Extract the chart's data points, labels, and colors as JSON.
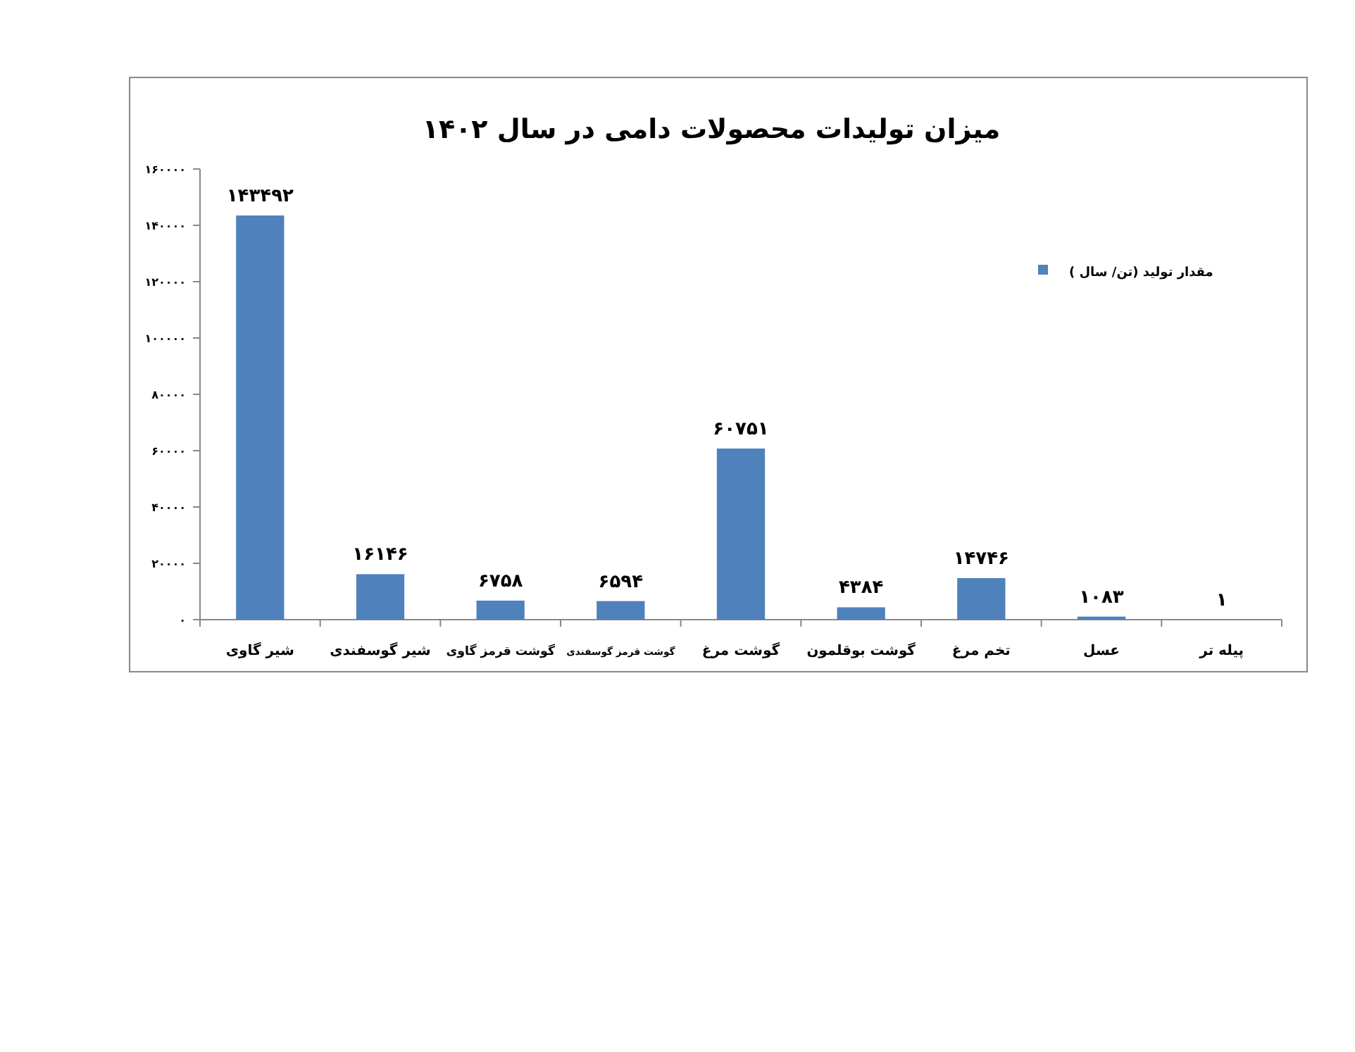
{
  "chart_data": {
    "type": "bar",
    "title": "میزان تولیدات محصولات دامی در سال ۱۴۰۲",
    "categories": [
      "شیر گاوی",
      "شیر گوسفندی",
      "گوشت قرمز گاوی",
      "گوشت قرمز گوسفندی",
      "گوشت مرغ",
      "گوشت بوقلمون",
      "تخم مرغ",
      "عسل",
      "پیله تر"
    ],
    "series": [
      {
        "name": "مقدار تولید (تن/ سال )",
        "color": "#4f81bd",
        "values": [
          143492,
          16146,
          6758,
          6594,
          60751,
          4384,
          14746,
          1083,
          1
        ],
        "value_labels": [
          "۱۴۳۴۹۲",
          "۱۶۱۴۶",
          "۶۷۵۸",
          "۶۵۹۴",
          "۶۰۷۵۱",
          "۴۳۸۴",
          "۱۴۷۴۶",
          "۱۰۸۳",
          "۱"
        ]
      }
    ],
    "ylim": [
      0,
      160000
    ],
    "yticks": [
      {
        "value": 0,
        "label": "۰"
      },
      {
        "value": 20000,
        "label": "۲۰۰۰۰"
      },
      {
        "value": 40000,
        "label": "۴۰۰۰۰"
      },
      {
        "value": 60000,
        "label": "۶۰۰۰۰"
      },
      {
        "value": 80000,
        "label": "۸۰۰۰۰"
      },
      {
        "value": 100000,
        "label": "۱۰۰۰۰۰"
      },
      {
        "value": 120000,
        "label": "۱۲۰۰۰۰"
      },
      {
        "value": 140000,
        "label": "۱۴۰۰۰۰"
      },
      {
        "value": 160000,
        "label": "۱۶۰۰۰۰"
      }
    ],
    "grid": false,
    "legend": "top right"
  }
}
